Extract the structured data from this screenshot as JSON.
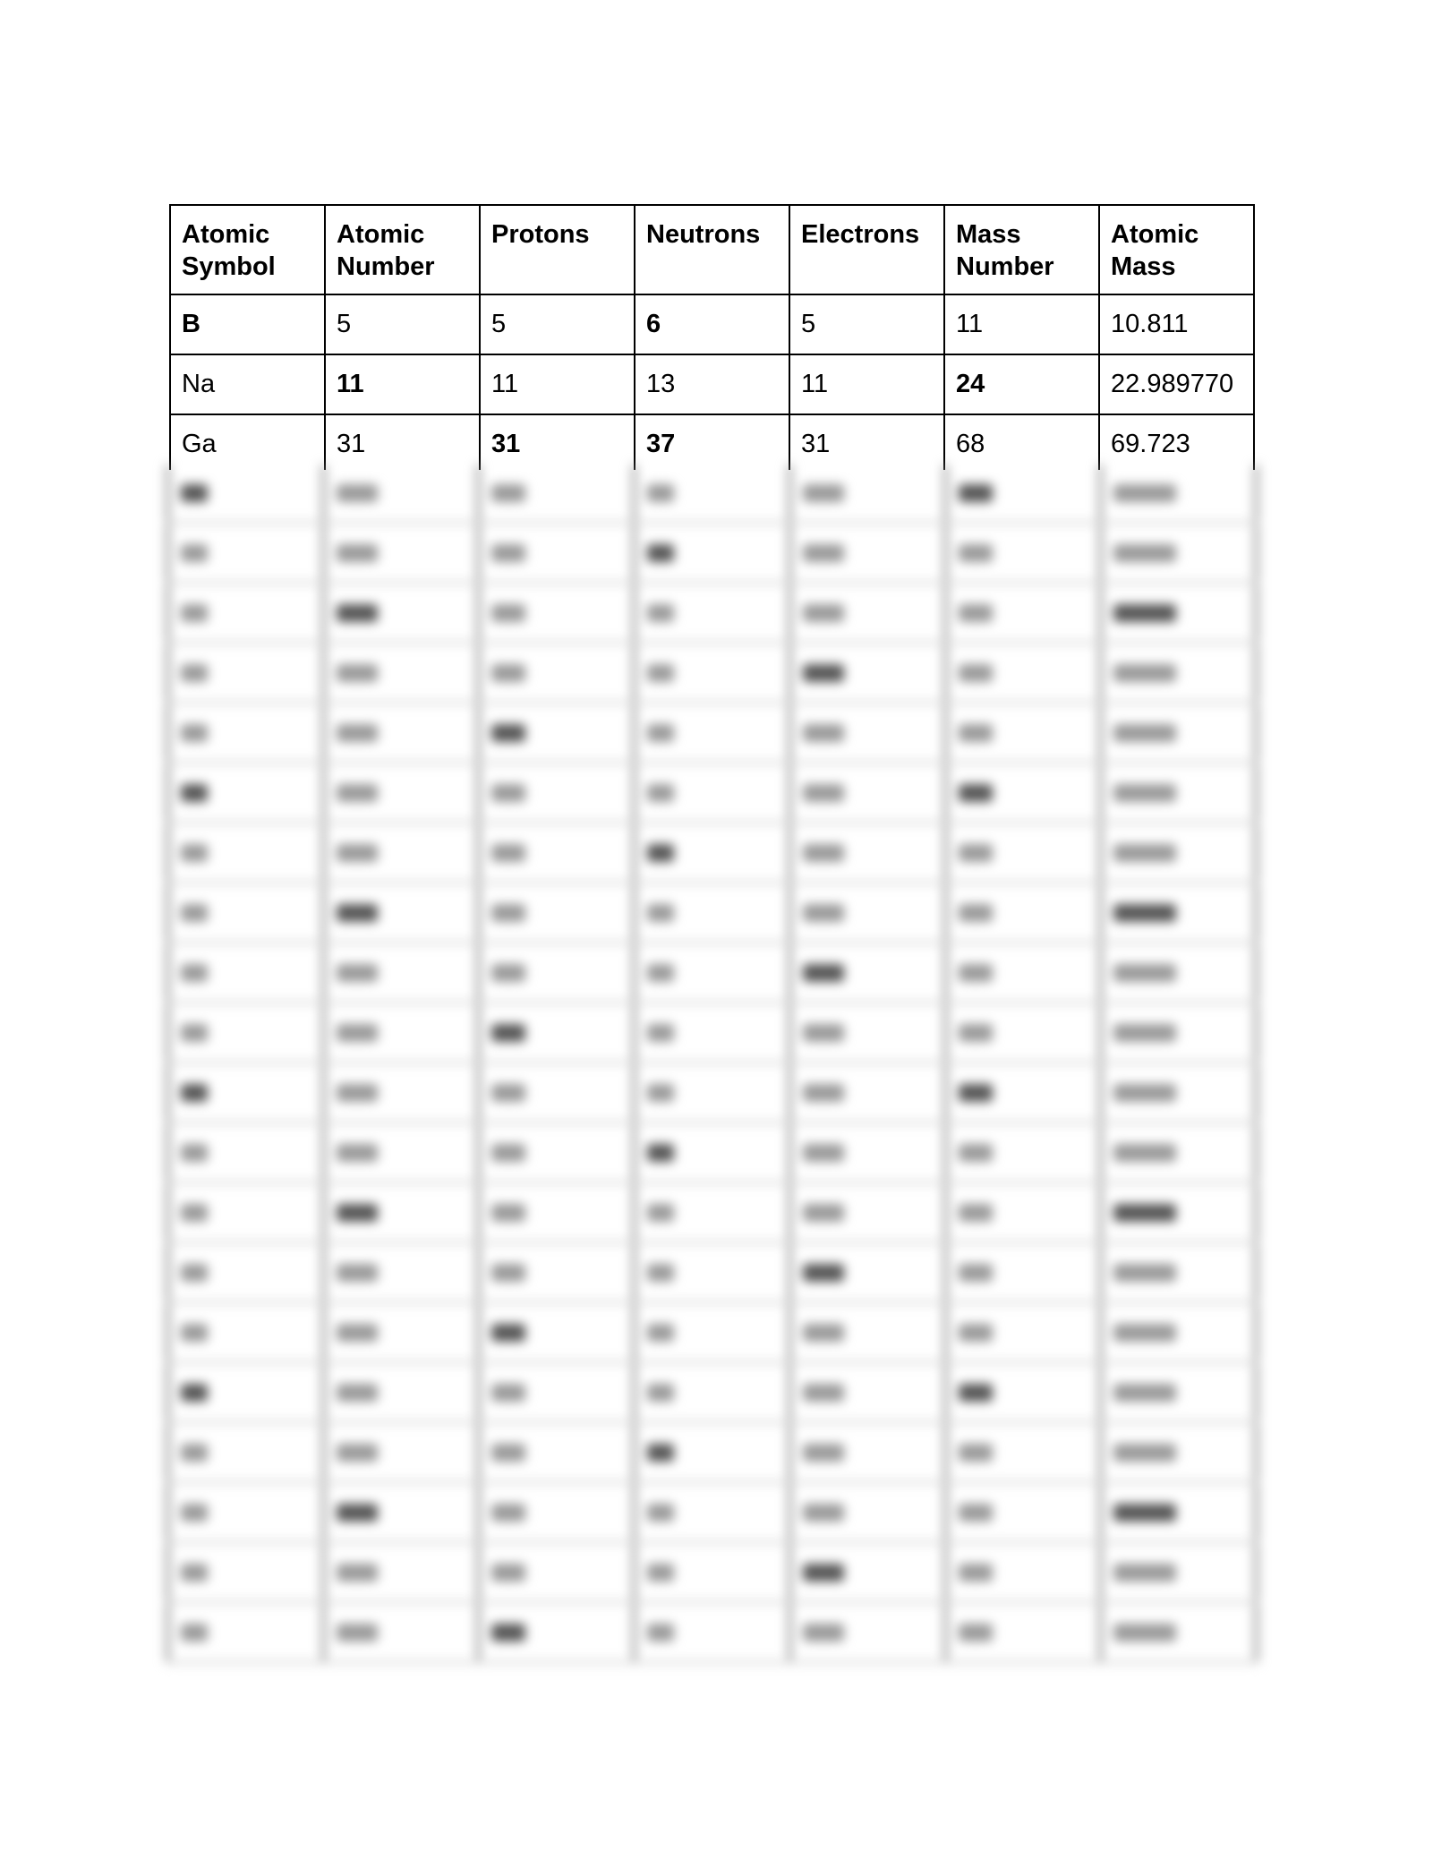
{
  "table": {
    "headers": [
      [
        "Atomic",
        "Symbol"
      ],
      [
        "Atomic",
        "Number"
      ],
      [
        "Protons",
        ""
      ],
      [
        "Neutrons",
        ""
      ],
      [
        "Electrons",
        ""
      ],
      [
        "Mass",
        "Number"
      ],
      [
        "Atomic",
        "Mass"
      ]
    ],
    "rows": [
      {
        "cells": [
          "B",
          "5",
          "5",
          "6",
          "5",
          "11",
          "10.811"
        ],
        "bold": [
          0,
          3
        ]
      },
      {
        "cells": [
          "Na",
          "11",
          "11",
          "13",
          "11",
          "24",
          "22.989770"
        ],
        "bold": [
          1,
          5
        ]
      },
      {
        "cells": [
          "Ga",
          "31",
          "31",
          "37",
          "31",
          "68",
          "69.723"
        ],
        "bold": [
          2,
          3
        ]
      }
    ],
    "blurred_row_count": 20
  }
}
